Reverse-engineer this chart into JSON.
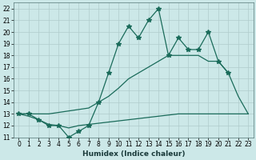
{
  "xlabel": "Humidex (Indice chaleur)",
  "xlim": [
    -0.5,
    23.5
  ],
  "ylim": [
    11,
    22.5
  ],
  "xticks": [
    0,
    1,
    2,
    3,
    4,
    5,
    6,
    7,
    8,
    9,
    10,
    11,
    12,
    13,
    14,
    15,
    16,
    17,
    18,
    19,
    20,
    21,
    22,
    23
  ],
  "yticks": [
    11,
    12,
    13,
    14,
    15,
    16,
    17,
    18,
    19,
    20,
    21,
    22
  ],
  "bg_color": "#cce8e8",
  "grid_color": "#b8d8d8",
  "line_color": "#1a6b5a",
  "line1_x": [
    0,
    1,
    2,
    3,
    4,
    5,
    6,
    7,
    8,
    9,
    10,
    11,
    12,
    13,
    14,
    15,
    16,
    17,
    18,
    19,
    20,
    21,
    22,
    23
  ],
  "line1_y": [
    13,
    12.8,
    12.5,
    12.1,
    12.0,
    11.8,
    12.0,
    12.1,
    12.2,
    12.3,
    12.4,
    12.5,
    12.6,
    12.7,
    12.8,
    12.9,
    13.0,
    13.0,
    13.0,
    13.0,
    13.0,
    13.0,
    13.0,
    13.0
  ],
  "line2_x": [
    0,
    3,
    7,
    8,
    9,
    10,
    11,
    12,
    13,
    14,
    15,
    16,
    17,
    18,
    19,
    20,
    21,
    22,
    23
  ],
  "line2_y": [
    13,
    13,
    13.5,
    14.0,
    14.5,
    15.2,
    16.0,
    16.5,
    17.0,
    17.5,
    18.0,
    18.0,
    18.0,
    18.0,
    17.5,
    17.5,
    16.5,
    14.5,
    13.0
  ],
  "line3_x": [
    0,
    1,
    2,
    3,
    4,
    5,
    6,
    7,
    8,
    9,
    10,
    11,
    12,
    13,
    14,
    15,
    16,
    17,
    18,
    19,
    20,
    21
  ],
  "line3_y": [
    13,
    13,
    12.5,
    12,
    12,
    11,
    11.5,
    12,
    14,
    16.5,
    19.0,
    20.5,
    19.5,
    21.0,
    22.0,
    18.0,
    19.5,
    18.5,
    18.5,
    20.0,
    17.5,
    16.5
  ],
  "marker": "*",
  "markersize": 4
}
